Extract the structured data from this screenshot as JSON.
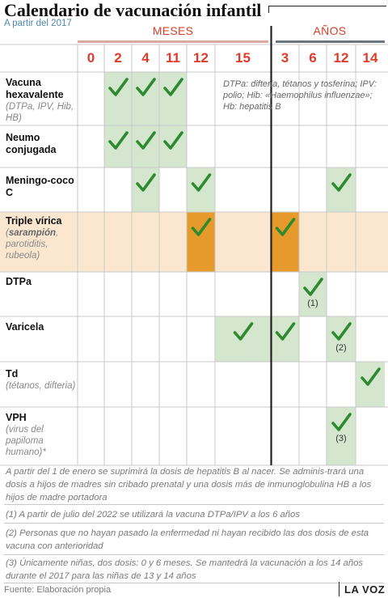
{
  "title": "Calendario de vacunación infantil",
  "subtitle": "A partir del 2017",
  "groups": {
    "meses": "MESES",
    "anos": "AÑOS"
  },
  "columns": [
    "0",
    "2",
    "4",
    "11",
    "12",
    "15",
    "3",
    "6",
    "12",
    "14"
  ],
  "vaccines": [
    {
      "name": "Vacuna hexavalente",
      "desc": "(DTPa, IPV, Hib, HB)",
      "doses": [
        false,
        true,
        true,
        true,
        false,
        false,
        false,
        false,
        false,
        false
      ],
      "notes": []
    },
    {
      "name": "Neumo conjugada",
      "desc": "",
      "doses": [
        false,
        true,
        true,
        true,
        false,
        false,
        false,
        false,
        false,
        false
      ],
      "notes": []
    },
    {
      "name": "Meningo-coco C",
      "desc": "",
      "doses": [
        false,
        false,
        true,
        false,
        true,
        false,
        false,
        false,
        true,
        false
      ],
      "notes": []
    },
    {
      "name": "Triple vírica",
      "desc_bold": "sarampión",
      "desc": "parotiditis, rubeola)",
      "doses": [
        false,
        false,
        false,
        false,
        true,
        false,
        true,
        false,
        false,
        false
      ],
      "highlight": true
    },
    {
      "name": "DTPa",
      "desc": "",
      "doses": [
        false,
        false,
        false,
        false,
        false,
        false,
        false,
        true,
        false,
        false
      ],
      "notes": [
        {
          "col": 7,
          "text": "(1)"
        }
      ]
    },
    {
      "name": "Varicela",
      "desc": "",
      "doses": [
        false,
        false,
        false,
        false,
        false,
        true,
        true,
        false,
        true,
        false
      ],
      "notes": [
        {
          "col": 8,
          "text": "(2)"
        }
      ]
    },
    {
      "name": "Td",
      "desc": "(tétanos, difteria)",
      "doses": [
        false,
        false,
        false,
        false,
        false,
        false,
        false,
        false,
        false,
        true
      ],
      "notes": []
    },
    {
      "name": "VPH",
      "desc": "(virus del papiloma humano)*",
      "doses": [
        false,
        false,
        false,
        false,
        false,
        false,
        false,
        false,
        true,
        false
      ],
      "notes": [
        {
          "col": 8,
          "text": "(3)"
        }
      ]
    }
  ],
  "abbrev_note": "DTPa: difteria, tétanos y tosferina; IPV: polio; Hib: «Haemophilus influenzae»; Hb: hepatitis B",
  "footnotes": [
    "A partir del 1 de enero se suprimirá la dosis de hepatitis B al nacer. Se adminis-trará una dosis a hijos de madres sin cribado prenatal y una dosis más de inmunoglobulina HB  a los hijos de madre portadora",
    "(1) A partir de julio del 2022 se utilizará la vacuna DTPa/IPV a los 6 años",
    "(2) Personas que no hayan pasado la enfermedad  ni hayan recibido las dos dosis de esta vacuna con anterioridad",
    "(3) Únicamente niñas, dos dosis: 0 y 6 meses. Se mantedrá la vacunación a los 14 años durante el 2017 para las niñas de 13 y 14 años"
  ],
  "source": "Fuente: Elaboración propia",
  "brand": "LA VOZ",
  "colors": {
    "header_red": "#e03a2a",
    "dose_green": "#d5e6cf",
    "check_green": "#2e8a2e",
    "highlight_row": "#fbe7cf",
    "highlight_dose": "#e69a2c",
    "grid_line": "#c9c9c9",
    "divider": "#222222"
  }
}
